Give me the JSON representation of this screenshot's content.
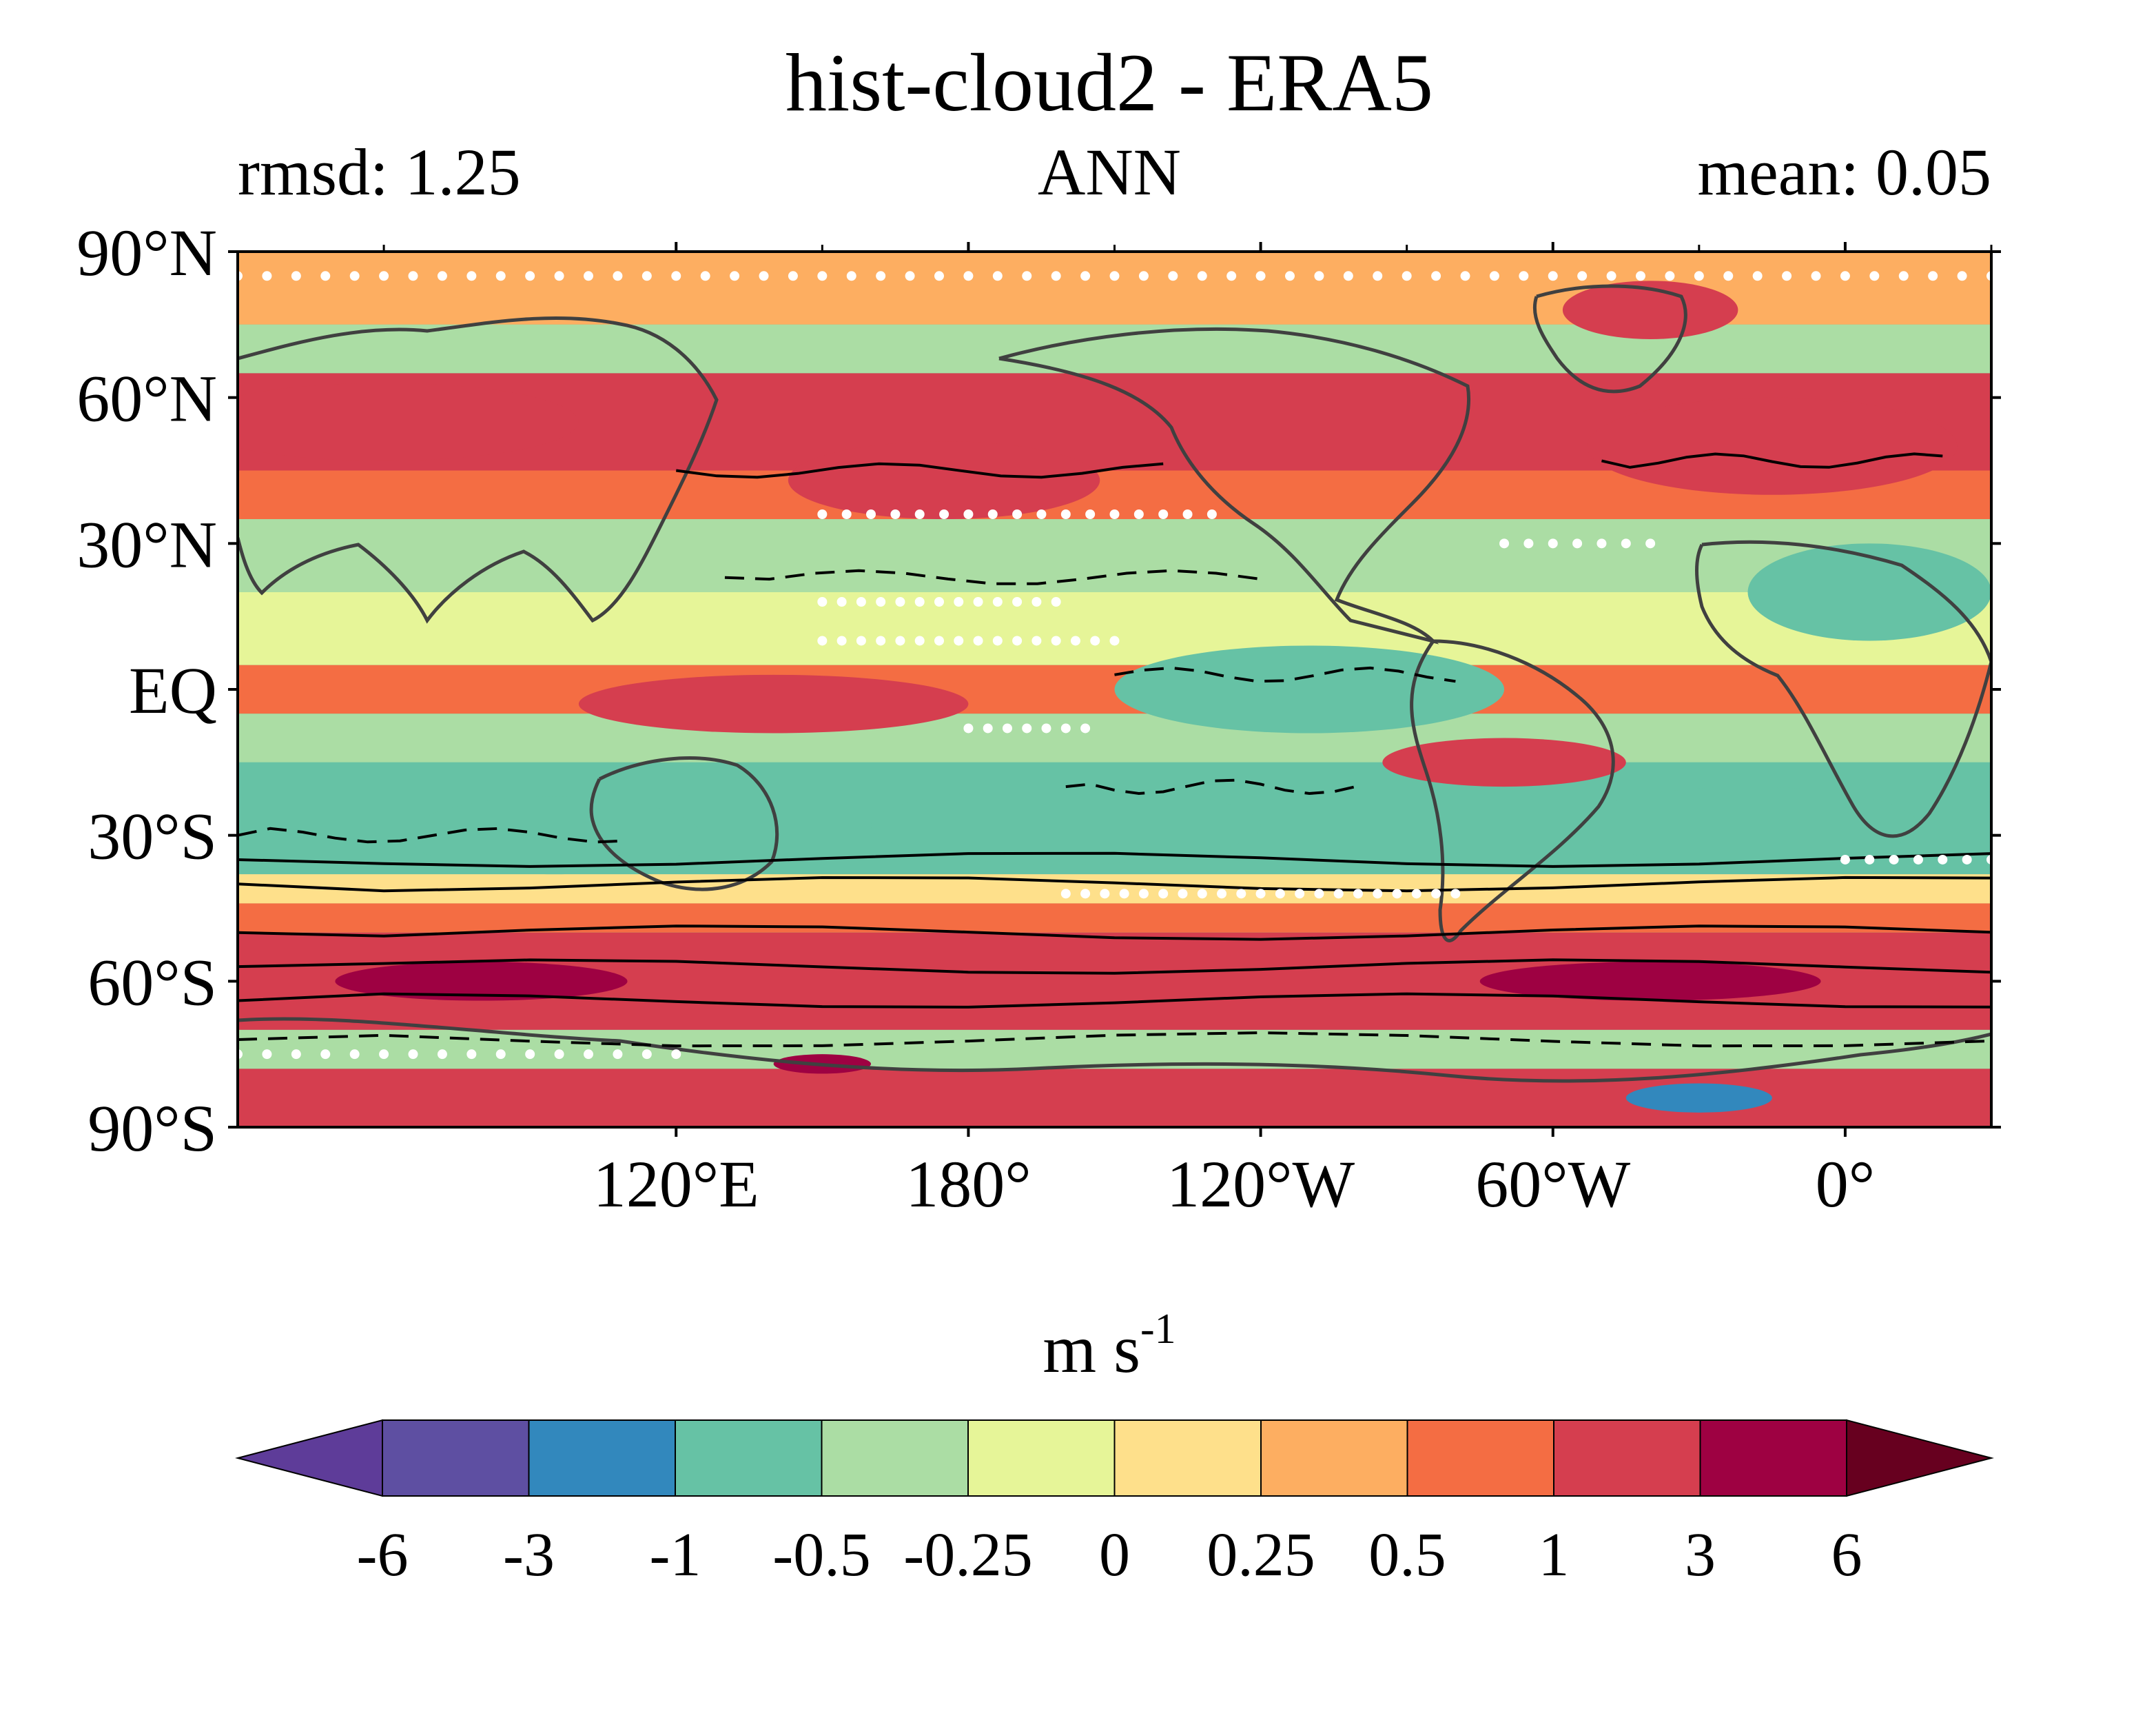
{
  "title": "hist-cloud2 - ERA5",
  "left_label": "rmsd: 1.25",
  "center_label": "ANN",
  "right_label": "mean: 0.05",
  "map": {
    "projection": "equirectangular",
    "lon_range": [
      30,
      390
    ],
    "lat_range": [
      -90,
      90
    ],
    "lat_ticks": [
      {
        "lat": 90,
        "label": "90°N"
      },
      {
        "lat": 60,
        "label": "60°N"
      },
      {
        "lat": 30,
        "label": "30°N"
      },
      {
        "lat": 0,
        "label": "EQ"
      },
      {
        "lat": -30,
        "label": "30°S"
      },
      {
        "lat": -60,
        "label": "60°S"
      },
      {
        "lat": -90,
        "label": "90°S"
      }
    ],
    "lon_ticks": [
      {
        "lon": 120,
        "label": "120°E"
      },
      {
        "lon": 180,
        "label": "180°"
      },
      {
        "lon": 240,
        "label": "120°W"
      },
      {
        "lon": 300,
        "label": "60°W"
      },
      {
        "lon": 360,
        "label": "0°"
      }
    ],
    "minor_lon_ticks": [
      60,
      150,
      210,
      270,
      330,
      390
    ],
    "background_color": "#62c2a3",
    "coastline_color": "#404040",
    "zonal_bands": [
      {
        "lat": [
          75,
          90
        ],
        "level": "0.25"
      },
      {
        "lat": [
          65,
          75
        ],
        "level": "-0.5"
      },
      {
        "lat": [
          45,
          65
        ],
        "level": "1"
      },
      {
        "lat": [
          35,
          45
        ],
        "level": "0.5"
      },
      {
        "lat": [
          20,
          35
        ],
        "level": "-0.5"
      },
      {
        "lat": [
          5,
          20
        ],
        "level": "-0.25"
      },
      {
        "lat": [
          -5,
          5
        ],
        "level": "0.5"
      },
      {
        "lat": [
          -15,
          -5
        ],
        "level": "-0.5"
      },
      {
        "lat": [
          -38,
          -15
        ],
        "level": "-1"
      },
      {
        "lat": [
          -44,
          -38
        ],
        "level": "0"
      },
      {
        "lat": [
          -50,
          -44
        ],
        "level": "0.5"
      },
      {
        "lat": [
          -70,
          -50
        ],
        "level": "1"
      },
      {
        "lat": [
          -78,
          -70
        ],
        "level": "-0.5"
      },
      {
        "lat": [
          -90,
          -78
        ],
        "level": "1"
      }
    ],
    "anomaly_patches": [
      {
        "lon": 60,
        "lat": 55,
        "rlon": 40,
        "rlat": 8,
        "level": "1"
      },
      {
        "lon": 175,
        "lat": 43,
        "rlon": 32,
        "rlat": 8,
        "level": "1"
      },
      {
        "lon": 345,
        "lat": 50,
        "rlon": 38,
        "rlat": 10,
        "level": "1"
      },
      {
        "lon": 250,
        "lat": 0,
        "rlon": 40,
        "rlat": 9,
        "level": "-1"
      },
      {
        "lon": 365,
        "lat": 20,
        "rlon": 25,
        "rlat": 10,
        "level": "-1"
      },
      {
        "lon": 95,
        "lat": -30,
        "rlon": 30,
        "rlat": 8,
        "level": "-1"
      },
      {
        "lon": 200,
        "lat": -28,
        "rlon": 40,
        "rlat": 8,
        "level": "-1"
      },
      {
        "lon": 340,
        "lat": -28,
        "rlon": 35,
        "rlat": 8,
        "level": "-1"
      },
      {
        "lon": 140,
        "lat": -3,
        "rlon": 40,
        "rlat": 6,
        "level": "1"
      },
      {
        "lon": 290,
        "lat": -15,
        "rlon": 25,
        "rlat": 5,
        "level": "1"
      },
      {
        "lon": 80,
        "lat": -60,
        "rlon": 30,
        "rlat": 4,
        "level": "3"
      },
      {
        "lon": 320,
        "lat": -60,
        "rlon": 35,
        "rlat": 4,
        "level": "3"
      },
      {
        "lon": 150,
        "lat": -77,
        "rlon": 10,
        "rlat": 2,
        "level": "3"
      },
      {
        "lon": 330,
        "lat": -84,
        "rlon": 15,
        "rlat": 3,
        "level": "-3"
      },
      {
        "lon": 320,
        "lat": 78,
        "rlon": 18,
        "rlat": 6,
        "level": "1"
      }
    ],
    "contours": [
      {
        "lat": 45,
        "lon": [
          120,
          220
        ],
        "style": "solid"
      },
      {
        "lat": 47,
        "lon": [
          310,
          380
        ],
        "style": "solid"
      },
      {
        "lat": 23,
        "lon": [
          130,
          240
        ],
        "style": "dashed"
      },
      {
        "lat": 3,
        "lon": [
          210,
          280
        ],
        "style": "dashed"
      },
      {
        "lat": -30,
        "lon": [
          30,
          110
        ],
        "style": "dashed"
      },
      {
        "lat": -20,
        "lon": [
          200,
          260
        ],
        "style": "dashed"
      },
      {
        "lat": -35,
        "lon": [
          30,
          390
        ],
        "style": "solid"
      },
      {
        "lat": -40,
        "lon": [
          30,
          390
        ],
        "style": "solid"
      },
      {
        "lat": -50,
        "lon": [
          30,
          390
        ],
        "style": "solid"
      },
      {
        "lat": -57,
        "lon": [
          30,
          390
        ],
        "style": "solid"
      },
      {
        "lat": -64,
        "lon": [
          30,
          390
        ],
        "style": "solid"
      },
      {
        "lat": -72,
        "lon": [
          30,
          390
        ],
        "style": "dashed"
      }
    ],
    "stipple_color": "#ffffff"
  },
  "colorbar": {
    "units": "m s",
    "units_exponent": "-1",
    "levels": [
      "-6",
      "-3",
      "-1",
      "-0.5",
      "-0.25",
      "0",
      "0.25",
      "0.5",
      "1",
      "3",
      "6"
    ],
    "colors": [
      "#5e3c99",
      "#5e4fa2",
      "#3288bd",
      "#66c2a5",
      "#abdda4",
      "#e6f598",
      "#fee08b",
      "#fdae61",
      "#f46d43",
      "#d53e4f",
      "#9e0142",
      "#67001f"
    ],
    "extend": "both"
  }
}
